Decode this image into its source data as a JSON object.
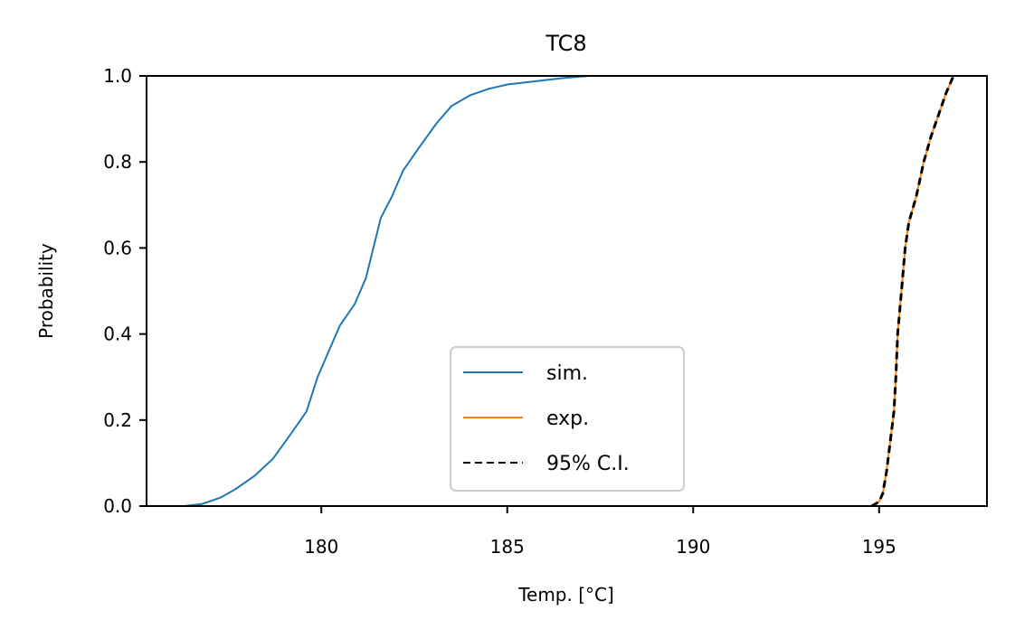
{
  "chart_data": {
    "type": "line",
    "title": "TC8",
    "xlabel": "Temp. [°C]",
    "ylabel": "Probability",
    "xlim": [
      175.3,
      197.9
    ],
    "ylim": [
      0.0,
      1.0
    ],
    "xticks": [
      180,
      185,
      190,
      195
    ],
    "xtick_labels": [
      "180",
      "185",
      "190",
      "195"
    ],
    "yticks": [
      0.0,
      0.2,
      0.4,
      0.6,
      0.8,
      1.0
    ],
    "ytick_labels": [
      "0.0",
      "0.2",
      "0.4",
      "0.6",
      "0.8",
      "1.0"
    ],
    "grid": false,
    "legend_placement": "lower-center",
    "series": [
      {
        "name": "sim.",
        "color": "#1f77b4",
        "style": "solid",
        "x": [
          176.3,
          176.8,
          177.3,
          177.7,
          178.2,
          178.7,
          179.2,
          179.6,
          179.9,
          180.2,
          180.5,
          180.9,
          181.2,
          181.4,
          181.6,
          181.9,
          182.2,
          182.6,
          183.1,
          183.5,
          184.0,
          184.5,
          185.0,
          185.5,
          186.0,
          186.5,
          187.2
        ],
        "y": [
          0.0,
          0.005,
          0.02,
          0.04,
          0.07,
          0.11,
          0.17,
          0.22,
          0.3,
          0.36,
          0.42,
          0.47,
          0.53,
          0.6,
          0.67,
          0.72,
          0.78,
          0.83,
          0.89,
          0.93,
          0.955,
          0.97,
          0.98,
          0.985,
          0.99,
          0.995,
          1.0
        ]
      },
      {
        "name": "exp.",
        "color": "#ff7f0e",
        "style": "solid",
        "x": [
          194.8,
          195.0,
          195.1,
          195.2,
          195.3,
          195.4,
          195.45,
          195.5,
          195.6,
          195.7,
          195.8,
          196.0,
          196.2,
          196.4,
          196.6,
          196.8,
          197.0
        ],
        "y": [
          0.0,
          0.01,
          0.03,
          0.08,
          0.15,
          0.22,
          0.3,
          0.4,
          0.5,
          0.6,
          0.66,
          0.72,
          0.8,
          0.86,
          0.91,
          0.96,
          1.0
        ]
      },
      {
        "name": "95% C.I.",
        "color": "#000000",
        "style": "dashed",
        "x": [
          194.8,
          195.0,
          195.1,
          195.2,
          195.3,
          195.4,
          195.45,
          195.5,
          195.6,
          195.7,
          195.8,
          196.0,
          196.2,
          196.4,
          196.6,
          196.8,
          197.0
        ],
        "y": [
          0.0,
          0.01,
          0.03,
          0.08,
          0.15,
          0.22,
          0.3,
          0.4,
          0.5,
          0.6,
          0.66,
          0.72,
          0.8,
          0.86,
          0.91,
          0.96,
          1.0
        ]
      }
    ]
  }
}
